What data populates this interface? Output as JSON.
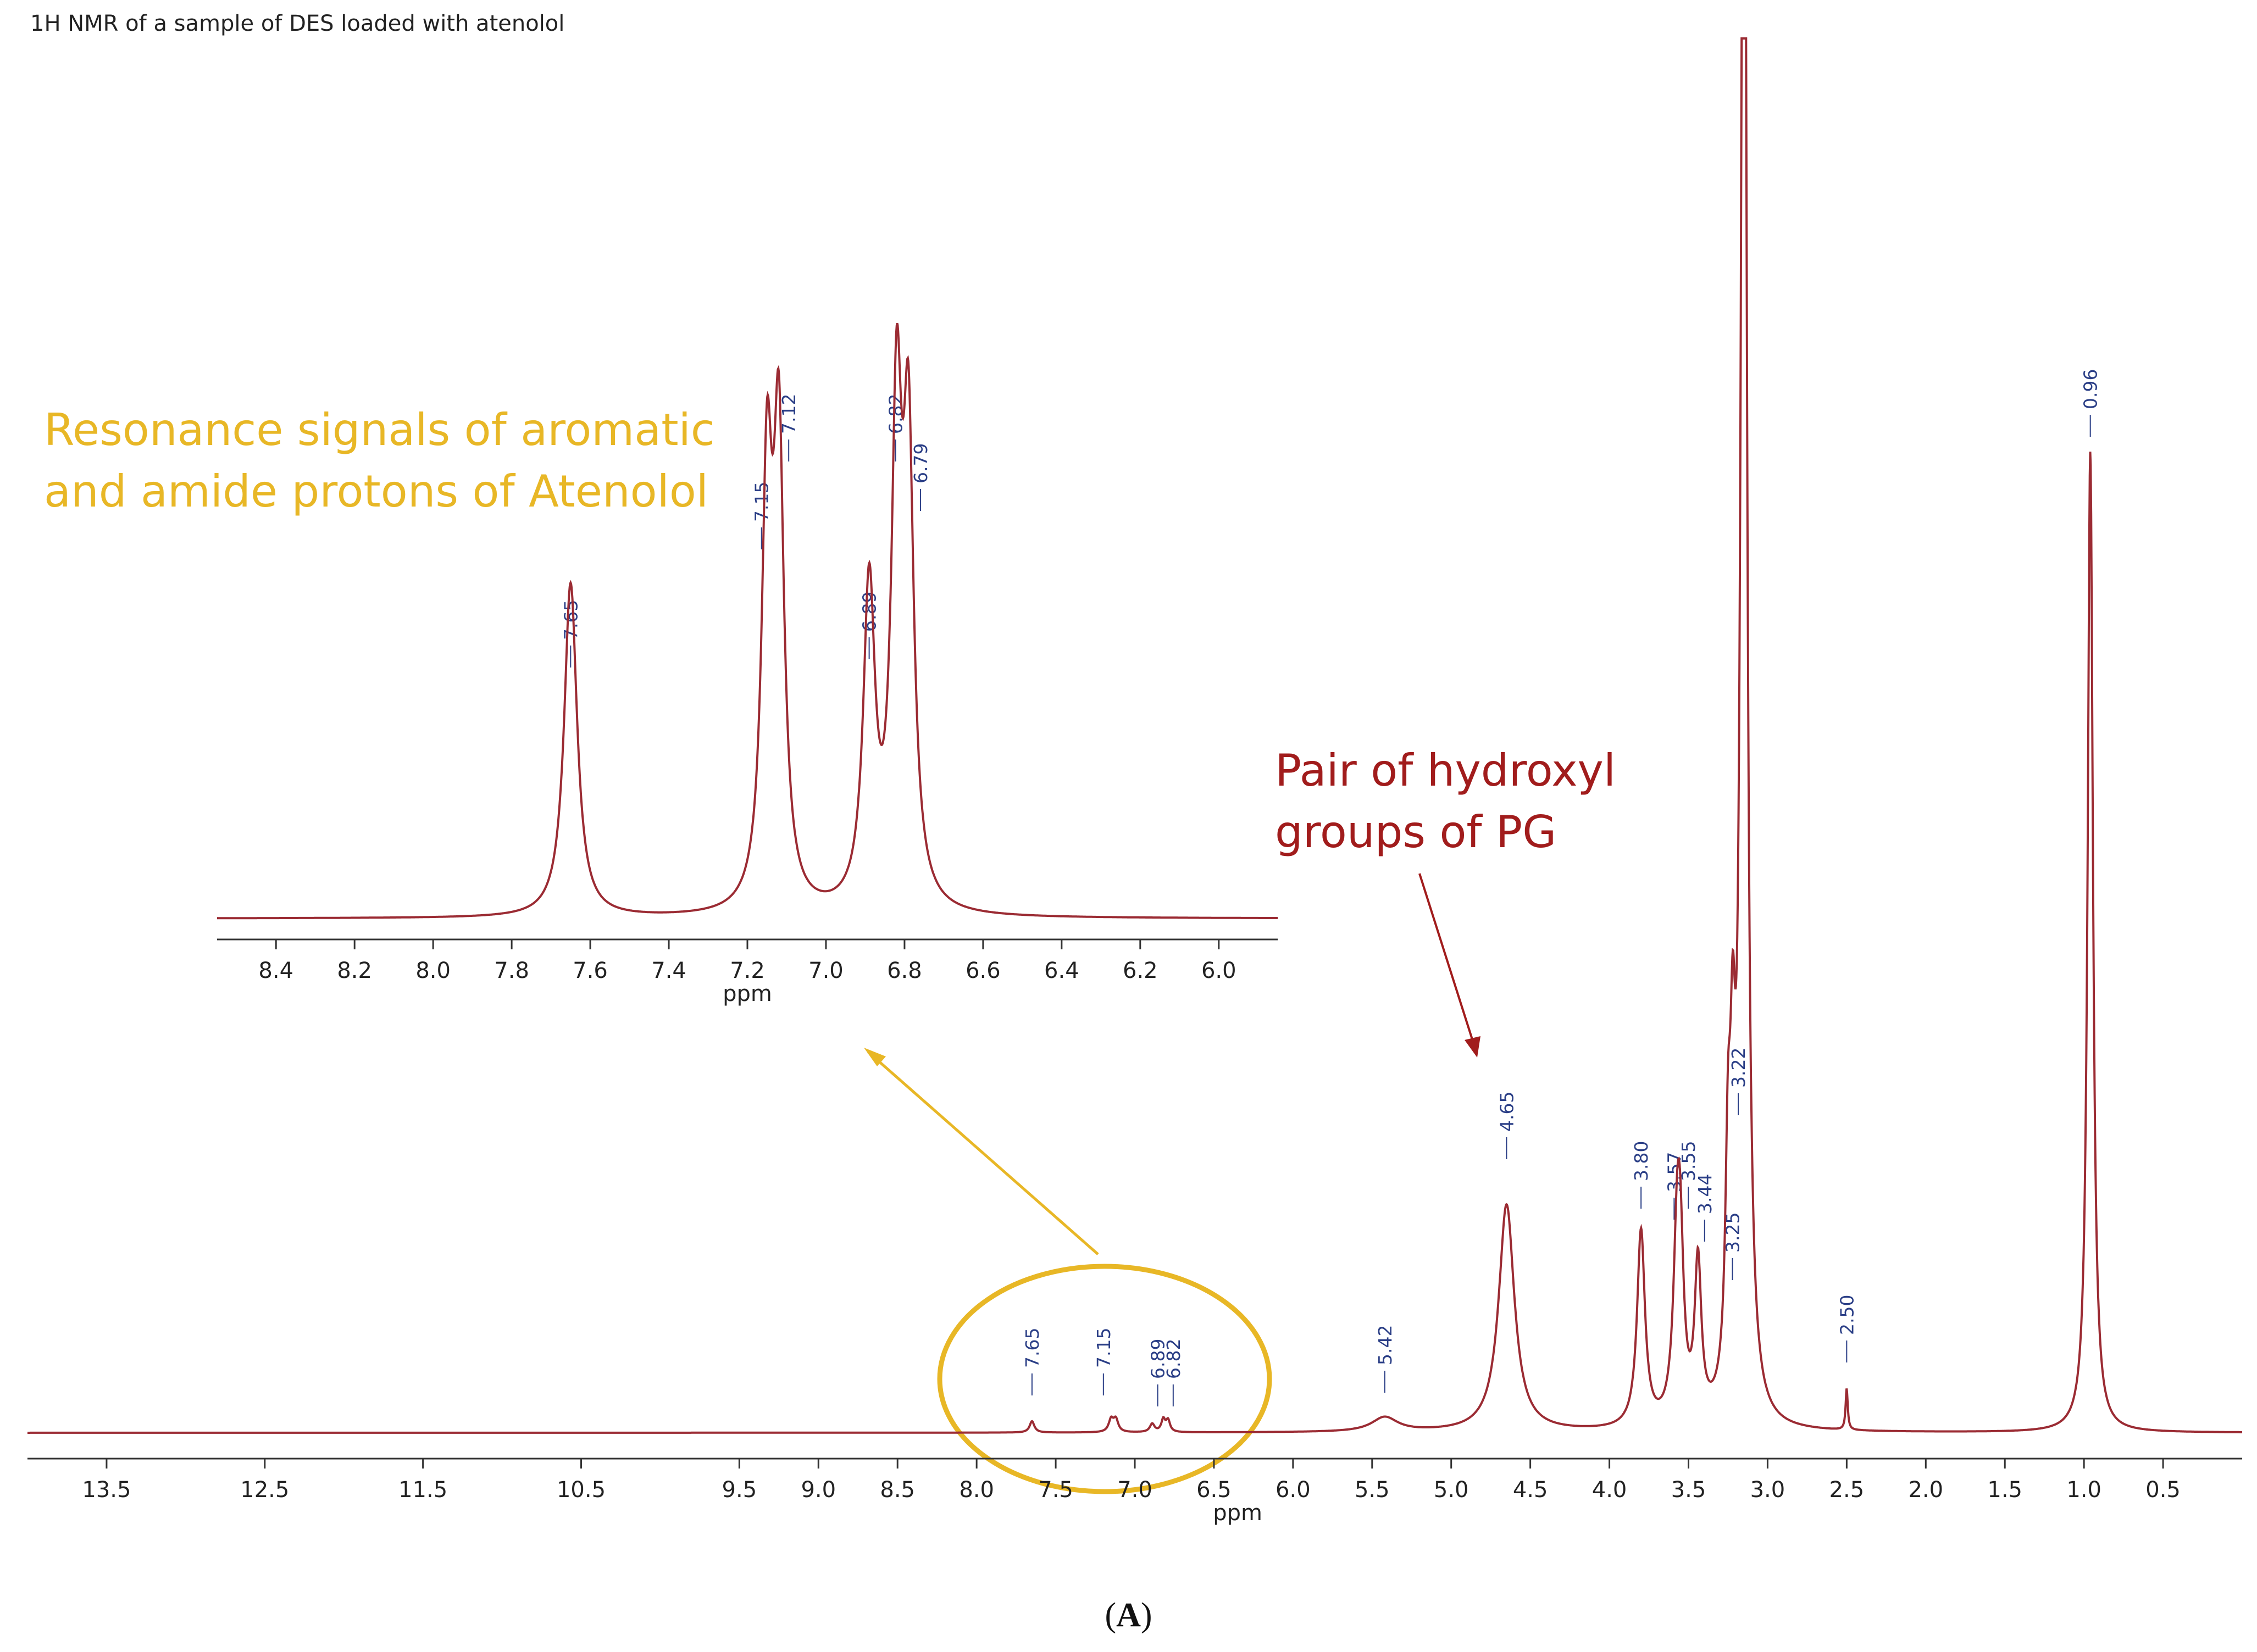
{
  "title": "1H NMR of a sample of DES loaded with atenolol",
  "caption": {
    "open": "(",
    "letter": "A",
    "close": ")"
  },
  "annotations": {
    "aromatic_line1": "Resonance signals of aromatic",
    "aromatic_line2": "and amide protons of Atenolol",
    "hydroxyl_line1": "Pair of hydroxyl",
    "hydroxyl_line2": "groups of PG"
  },
  "colors": {
    "spectrum": "#9B2B33",
    "peak_label": "#2A3E86",
    "aromatic_annotation": "#E8B726",
    "hydroxyl_annotation": "#A11C1C"
  },
  "chart_data": [
    {
      "type": "line",
      "panel": "full spectrum",
      "xlabel": "ppm",
      "x_reversed": true,
      "xlim": [
        14.0,
        0.0
      ],
      "x_ticks": [
        {
          "value": 13.5,
          "label": "13.5"
        },
        {
          "value": 12.5,
          "label": "12.5"
        },
        {
          "value": 11.5,
          "label": "11.5"
        },
        {
          "value": 10.5,
          "label": "10.5"
        },
        {
          "value": 9.5,
          "label": "9.5"
        },
        {
          "value": 9.0,
          "label": "9.0"
        },
        {
          "value": 8.5,
          "label": "8.5"
        },
        {
          "value": 8.0,
          "label": "8.0"
        },
        {
          "value": 7.5,
          "label": "7.5"
        },
        {
          "value": 7.0,
          "label": "7.0"
        },
        {
          "value": 6.5,
          "label": "6.5"
        },
        {
          "value": 6.0,
          "label": "6.0"
        },
        {
          "value": 5.5,
          "label": "5.5"
        },
        {
          "value": 5.0,
          "label": "5.0"
        },
        {
          "value": 4.5,
          "label": "4.5"
        },
        {
          "value": 4.0,
          "label": "4.0"
        },
        {
          "value": 3.5,
          "label": "3.5"
        },
        {
          "value": 3.0,
          "label": "3.0"
        },
        {
          "value": 2.5,
          "label": "2.5"
        },
        {
          "value": 2.0,
          "label": "2.0"
        },
        {
          "value": 1.5,
          "label": "1.5"
        },
        {
          "value": 1.0,
          "label": "1.0"
        },
        {
          "value": 0.5,
          "label": "0.5"
        }
      ],
      "peaks": [
        {
          "ppm": 7.65,
          "height": 0.011,
          "width": 0.018
        },
        {
          "ppm": 7.15,
          "height": 0.012,
          "width": 0.018
        },
        {
          "ppm": 7.12,
          "height": 0.012,
          "width": 0.018
        },
        {
          "ppm": 6.89,
          "height": 0.008,
          "width": 0.018
        },
        {
          "ppm": 6.82,
          "height": 0.012,
          "width": 0.015
        },
        {
          "ppm": 6.79,
          "height": 0.011,
          "width": 0.015
        },
        {
          "ppm": 5.42,
          "height": 0.014,
          "width": 0.1
        },
        {
          "ppm": 4.65,
          "height": 0.22,
          "width": 0.06
        },
        {
          "ppm": 3.8,
          "height": 0.19,
          "width": 0.03
        },
        {
          "ppm": 3.57,
          "height": 0.18,
          "width": 0.03
        },
        {
          "ppm": 3.55,
          "height": 0.1,
          "width": 0.025
        },
        {
          "ppm": 3.44,
          "height": 0.15,
          "width": 0.025
        },
        {
          "ppm": 3.25,
          "height": 0.2,
          "width": 0.02
        },
        {
          "ppm": 3.22,
          "height": 0.25,
          "width": 0.02
        },
        {
          "ppm": 3.15,
          "height": 2.0,
          "width": 0.02
        },
        {
          "ppm": 2.5,
          "height": 0.04,
          "width": 0.008
        },
        {
          "ppm": 0.96,
          "height": 0.95,
          "width": 0.02
        }
      ],
      "peak_labels": [
        {
          "ppm": 7.65,
          "label": "7.65"
        },
        {
          "ppm": 7.15,
          "label": "7.15"
        },
        {
          "ppm": 6.89,
          "label": "6.89"
        },
        {
          "ppm": 6.82,
          "label": "6.82"
        },
        {
          "ppm": 5.42,
          "label": "5.42"
        },
        {
          "ppm": 4.65,
          "label": "4.65"
        },
        {
          "ppm": 3.8,
          "label": "3.80"
        },
        {
          "ppm": 3.57,
          "label": "3.57"
        },
        {
          "ppm": 3.55,
          "label": "3.55"
        },
        {
          "ppm": 3.44,
          "label": "3.44"
        },
        {
          "ppm": 3.25,
          "label": "3.25"
        },
        {
          "ppm": 3.22,
          "label": "3.22"
        },
        {
          "ppm": 2.5,
          "label": "2.50"
        },
        {
          "ppm": 0.96,
          "label": "0.96"
        }
      ]
    },
    {
      "type": "line",
      "panel": "inset: aromatic region",
      "xlabel": "ppm",
      "x_reversed": true,
      "xlim": [
        8.55,
        5.85
      ],
      "x_ticks": [
        {
          "value": 8.4,
          "label": "8.4"
        },
        {
          "value": 8.2,
          "label": "8.2"
        },
        {
          "value": 8.0,
          "label": "8.0"
        },
        {
          "value": 7.8,
          "label": "7.8"
        },
        {
          "value": 7.6,
          "label": "7.6"
        },
        {
          "value": 7.4,
          "label": "7.4"
        },
        {
          "value": 7.2,
          "label": "7.2"
        },
        {
          "value": 7.0,
          "label": "7.0"
        },
        {
          "value": 6.8,
          "label": "6.8"
        },
        {
          "value": 6.6,
          "label": "6.6"
        },
        {
          "value": 6.4,
          "label": "6.4"
        },
        {
          "value": 6.2,
          "label": "6.2"
        },
        {
          "value": 6.0,
          "label": "6.0"
        }
      ],
      "peaks": [
        {
          "ppm": 7.65,
          "height": 0.58,
          "width": 0.02
        },
        {
          "ppm": 7.15,
          "height": 0.72,
          "width": 0.016
        },
        {
          "ppm": 7.12,
          "height": 0.78,
          "width": 0.016
        },
        {
          "ppm": 6.89,
          "height": 0.55,
          "width": 0.018
        },
        {
          "ppm": 6.82,
          "height": 0.82,
          "width": 0.016
        },
        {
          "ppm": 6.79,
          "height": 0.76,
          "width": 0.016
        }
      ],
      "peak_labels": [
        {
          "ppm": 7.65,
          "label": "7.65"
        },
        {
          "ppm": 7.15,
          "label": "7.15"
        },
        {
          "ppm": 7.12,
          "label": "7.12"
        },
        {
          "ppm": 6.89,
          "label": "6.89"
        },
        {
          "ppm": 6.82,
          "label": "6.82"
        },
        {
          "ppm": 6.79,
          "label": "6.79"
        }
      ]
    }
  ]
}
